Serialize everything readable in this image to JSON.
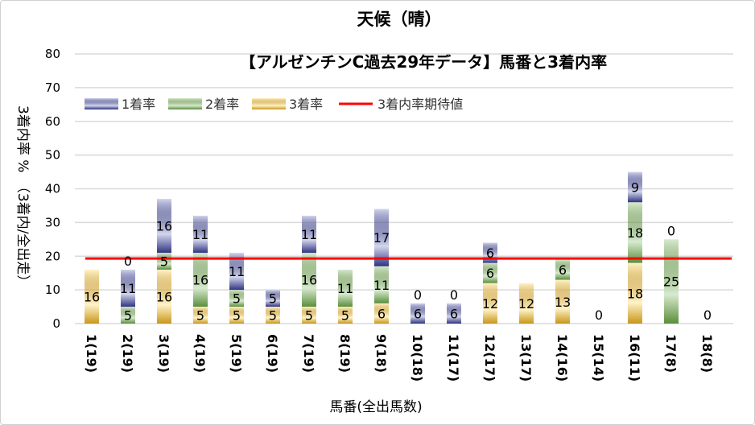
{
  "chart_data": {
    "type": "bar",
    "stacked": true,
    "title": "天候（晴）",
    "subtitle": "【アルゼンチンC過去29年データ】馬番と3着内率",
    "xlabel": "馬番(全出馬数)",
    "ylabel": "3着内率 %　（3着内/全出走）",
    "ylim": [
      0,
      80
    ],
    "yticks": [
      0,
      10,
      20,
      30,
      40,
      50,
      60,
      70,
      80
    ],
    "grid": true,
    "legend_placement": "top-left",
    "categories": [
      "1(19)",
      "2(19)",
      "3(19)",
      "4(19)",
      "5(19)",
      "6(19)",
      "7(19)",
      "8(19)",
      "9(18)",
      "10(18)",
      "11(17)",
      "12(17)",
      "13(17)",
      "14(16)",
      "15(14)",
      "16(11)",
      "17(8)",
      "18(8)"
    ],
    "series": [
      {
        "name": "3着率",
        "color": "#c9961a",
        "values": [
          16,
          0,
          16,
          5,
          5,
          5,
          5,
          5,
          6,
          0,
          0,
          12,
          12,
          13,
          0,
          18,
          0,
          0
        ]
      },
      {
        "name": "2着率",
        "color": "#5b8e3c",
        "values": [
          0,
          5,
          5,
          16,
          5,
          0,
          16,
          11,
          11,
          0,
          0,
          6,
          0,
          6,
          0,
          18,
          25,
          0
        ]
      },
      {
        "name": "1着率",
        "color": "#2f3480",
        "values": [
          0,
          11,
          16,
          11,
          11,
          5,
          11,
          0,
          17,
          6,
          6,
          6,
          0,
          0,
          0,
          9,
          0,
          0
        ]
      }
    ],
    "reference_line": {
      "name": "3着内率期待値",
      "color": "#ff0000",
      "value": 19.3
    }
  }
}
